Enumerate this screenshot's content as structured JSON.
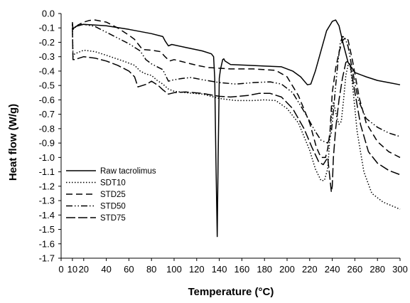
{
  "chart_data": {
    "type": "line",
    "title": "",
    "xlabel": "Temperature (°C)",
    "ylabel": "Heat flow (W/g)",
    "xlim": [
      0,
      300
    ],
    "ylim": [
      -1.7,
      0
    ],
    "x_ticks": [
      0,
      10,
      20,
      40,
      60,
      80,
      100,
      120,
      140,
      160,
      180,
      200,
      220,
      240,
      260,
      280,
      300
    ],
    "y_ticks": [
      "0.0",
      "-0.1",
      "-0.2",
      "-0.3",
      "-0.4",
      "-0.5",
      "-0.6",
      "-0.7",
      "-0.8",
      "-0.9",
      "-1.0",
      "-1.1",
      "-1.2",
      "-1.3",
      "-1.4",
      "-1.5",
      "-1.6",
      "-1.7"
    ],
    "grid": false,
    "legend_position": "bottom-left",
    "series": [
      {
        "name": "Raw tacrolimus",
        "color": "#000000",
        "dash": "",
        "points": [
          [
            10,
            -0.06
          ],
          [
            10.5,
            -0.11
          ],
          [
            11.5,
            -0.1
          ],
          [
            13,
            -0.09
          ],
          [
            20,
            -0.075
          ],
          [
            40,
            -0.085
          ],
          [
            60,
            -0.11
          ],
          [
            80,
            -0.14
          ],
          [
            90,
            -0.16
          ],
          [
            92,
            -0.19
          ],
          [
            95,
            -0.225
          ],
          [
            98,
            -0.215
          ],
          [
            110,
            -0.235
          ],
          [
            125,
            -0.26
          ],
          [
            133,
            -0.28
          ],
          [
            135,
            -0.3
          ],
          [
            136,
            -0.45
          ],
          [
            137,
            -1.0
          ],
          [
            138.2,
            -1.55
          ],
          [
            139,
            -1.0
          ],
          [
            140,
            -0.45
          ],
          [
            141,
            -0.39
          ],
          [
            143,
            -0.32
          ],
          [
            144,
            -0.315
          ],
          [
            145,
            -0.33
          ],
          [
            150,
            -0.355
          ],
          [
            165,
            -0.36
          ],
          [
            180,
            -0.365
          ],
          [
            195,
            -0.37
          ],
          [
            205,
            -0.4
          ],
          [
            212,
            -0.44
          ],
          [
            218,
            -0.495
          ],
          [
            221,
            -0.49
          ],
          [
            225,
            -0.4
          ],
          [
            230,
            -0.26
          ],
          [
            235,
            -0.12
          ],
          [
            240,
            -0.055
          ],
          [
            243,
            -0.045
          ],
          [
            246,
            -0.085
          ],
          [
            250,
            -0.22
          ],
          [
            254,
            -0.34
          ],
          [
            260,
            -0.41
          ],
          [
            270,
            -0.44
          ],
          [
            280,
            -0.465
          ],
          [
            290,
            -0.48
          ],
          [
            300,
            -0.495
          ]
        ]
      },
      {
        "name": "SDT10",
        "color": "#000000",
        "dash": "1.5,2.5",
        "points": [
          [
            10,
            -0.08
          ],
          [
            10.5,
            -0.3
          ],
          [
            12,
            -0.28
          ],
          [
            20,
            -0.255
          ],
          [
            30,
            -0.265
          ],
          [
            40,
            -0.29
          ],
          [
            55,
            -0.33
          ],
          [
            65,
            -0.36
          ],
          [
            70,
            -0.4
          ],
          [
            75,
            -0.42
          ],
          [
            80,
            -0.43
          ],
          [
            85,
            -0.465
          ],
          [
            90,
            -0.49
          ],
          [
            95,
            -0.525
          ],
          [
            100,
            -0.54
          ],
          [
            110,
            -0.55
          ],
          [
            125,
            -0.56
          ],
          [
            140,
            -0.59
          ],
          [
            155,
            -0.605
          ],
          [
            170,
            -0.605
          ],
          [
            180,
            -0.6
          ],
          [
            190,
            -0.605
          ],
          [
            200,
            -0.66
          ],
          [
            210,
            -0.76
          ],
          [
            220,
            -0.95
          ],
          [
            225,
            -1.08
          ],
          [
            230,
            -1.16
          ],
          [
            233,
            -1.16
          ],
          [
            236,
            -1.08
          ],
          [
            238,
            -0.85
          ],
          [
            240,
            -0.65
          ],
          [
            241,
            -0.62
          ],
          [
            242,
            -0.65
          ],
          [
            244,
            -0.72
          ],
          [
            246,
            -0.77
          ],
          [
            248,
            -0.75
          ],
          [
            250,
            -0.6
          ],
          [
            252,
            -0.43
          ],
          [
            254,
            -0.36
          ],
          [
            256,
            -0.37
          ],
          [
            258,
            -0.5
          ],
          [
            262,
            -0.82
          ],
          [
            268,
            -1.1
          ],
          [
            275,
            -1.25
          ],
          [
            285,
            -1.31
          ],
          [
            300,
            -1.36
          ]
        ]
      },
      {
        "name": "STD25",
        "color": "#000000",
        "dash": "9,5",
        "points": [
          [
            10,
            -0.07
          ],
          [
            10.5,
            -0.11
          ],
          [
            12,
            -0.1
          ],
          [
            15,
            -0.08
          ],
          [
            20,
            -0.06
          ],
          [
            25,
            -0.048
          ],
          [
            30,
            -0.045
          ],
          [
            40,
            -0.06
          ],
          [
            50,
            -0.1
          ],
          [
            60,
            -0.15
          ],
          [
            65,
            -0.18
          ],
          [
            68,
            -0.21
          ],
          [
            72,
            -0.25
          ],
          [
            80,
            -0.255
          ],
          [
            88,
            -0.265
          ],
          [
            92,
            -0.3
          ],
          [
            96,
            -0.33
          ],
          [
            100,
            -0.32
          ],
          [
            110,
            -0.34
          ],
          [
            120,
            -0.36
          ],
          [
            130,
            -0.375
          ],
          [
            150,
            -0.385
          ],
          [
            170,
            -0.385
          ],
          [
            190,
            -0.395
          ],
          [
            200,
            -0.44
          ],
          [
            210,
            -0.57
          ],
          [
            220,
            -0.76
          ],
          [
            226,
            -0.93
          ],
          [
            230,
            -1.0
          ],
          [
            234,
            -1.0
          ],
          [
            236,
            -0.94
          ],
          [
            238,
            -0.82
          ],
          [
            240,
            -0.55
          ],
          [
            243,
            -0.38
          ],
          [
            246,
            -0.27
          ],
          [
            249,
            -0.19
          ],
          [
            252,
            -0.165
          ],
          [
            254,
            -0.185
          ],
          [
            258,
            -0.33
          ],
          [
            264,
            -0.59
          ],
          [
            270,
            -0.76
          ],
          [
            280,
            -0.89
          ],
          [
            290,
            -0.96
          ],
          [
            300,
            -1.0
          ]
        ]
      },
      {
        "name": "STD50",
        "color": "#000000",
        "dash": "9,3,1.5,3,1.5,3",
        "points": [
          [
            10,
            -0.07
          ],
          [
            10.5,
            -0.11
          ],
          [
            12,
            -0.1
          ],
          [
            15,
            -0.08
          ],
          [
            20,
            -0.075
          ],
          [
            30,
            -0.09
          ],
          [
            40,
            -0.13
          ],
          [
            50,
            -0.17
          ],
          [
            60,
            -0.21
          ],
          [
            70,
            -0.26
          ],
          [
            75,
            -0.32
          ],
          [
            80,
            -0.35
          ],
          [
            85,
            -0.37
          ],
          [
            90,
            -0.39
          ],
          [
            95,
            -0.47
          ],
          [
            100,
            -0.46
          ],
          [
            108,
            -0.45
          ],
          [
            115,
            -0.445
          ],
          [
            125,
            -0.46
          ],
          [
            140,
            -0.48
          ],
          [
            155,
            -0.49
          ],
          [
            170,
            -0.48
          ],
          [
            185,
            -0.475
          ],
          [
            195,
            -0.49
          ],
          [
            205,
            -0.55
          ],
          [
            215,
            -0.68
          ],
          [
            225,
            -0.82
          ],
          [
            230,
            -0.88
          ],
          [
            236,
            -0.9
          ],
          [
            239,
            -0.84
          ],
          [
            241,
            -0.68
          ],
          [
            243,
            -0.5
          ],
          [
            245,
            -0.34
          ],
          [
            247,
            -0.21
          ],
          [
            249,
            -0.16
          ],
          [
            251,
            -0.165
          ],
          [
            254,
            -0.23
          ],
          [
            258,
            -0.4
          ],
          [
            263,
            -0.6
          ],
          [
            270,
            -0.73
          ],
          [
            280,
            -0.79
          ],
          [
            290,
            -0.83
          ],
          [
            300,
            -0.855
          ]
        ]
      },
      {
        "name": "STD75",
        "color": "#000000",
        "dash": "13,4",
        "points": [
          [
            10,
            -0.1
          ],
          [
            10.5,
            -0.32
          ],
          [
            12,
            -0.32
          ],
          [
            20,
            -0.3
          ],
          [
            30,
            -0.31
          ],
          [
            40,
            -0.33
          ],
          [
            50,
            -0.36
          ],
          [
            60,
            -0.4
          ],
          [
            65,
            -0.44
          ],
          [
            68,
            -0.51
          ],
          [
            72,
            -0.5
          ],
          [
            76,
            -0.49
          ],
          [
            80,
            -0.47
          ],
          [
            86,
            -0.5
          ],
          [
            90,
            -0.53
          ],
          [
            95,
            -0.56
          ],
          [
            100,
            -0.55
          ],
          [
            110,
            -0.545
          ],
          [
            125,
            -0.555
          ],
          [
            140,
            -0.575
          ],
          [
            150,
            -0.58
          ],
          [
            165,
            -0.57
          ],
          [
            175,
            -0.555
          ],
          [
            185,
            -0.555
          ],
          [
            195,
            -0.58
          ],
          [
            205,
            -0.66
          ],
          [
            215,
            -0.8
          ],
          [
            222,
            -0.93
          ],
          [
            228,
            -1.03
          ],
          [
            232,
            -1.05
          ],
          [
            236,
            -1.0
          ],
          [
            238,
            -1.15
          ],
          [
            239.2,
            -1.24
          ],
          [
            240,
            -1.2
          ],
          [
            241,
            -1.0
          ],
          [
            243,
            -0.8
          ],
          [
            246,
            -0.6
          ],
          [
            249,
            -0.45
          ],
          [
            252,
            -0.34
          ],
          [
            254,
            -0.33
          ],
          [
            256,
            -0.36
          ],
          [
            259,
            -0.5
          ],
          [
            265,
            -0.77
          ],
          [
            272,
            -0.96
          ],
          [
            280,
            -1.04
          ],
          [
            290,
            -1.09
          ],
          [
            300,
            -1.12
          ]
        ]
      }
    ]
  }
}
